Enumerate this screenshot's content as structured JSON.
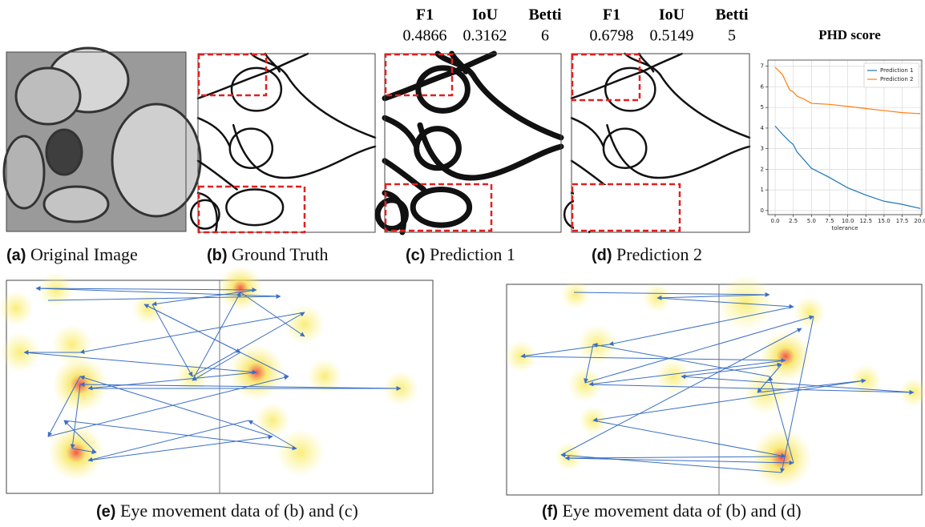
{
  "panels": [
    {
      "label": "(a)",
      "caption": "Original Image"
    },
    {
      "label": "(b)",
      "caption": "Ground Truth"
    },
    {
      "label": "(c)",
      "caption": "Prediction 1",
      "metrics": {
        "headers": [
          "F1",
          "IoU",
          "Betti"
        ],
        "values": [
          0.4866,
          0.3162,
          6
        ]
      }
    },
    {
      "label": "(d)",
      "caption": "Prediction 2",
      "metrics": {
        "headers": [
          "F1",
          "IoU",
          "Betti"
        ],
        "values": [
          0.6798,
          0.5149,
          5
        ]
      }
    },
    {
      "label": "(e)",
      "caption": "Eye movement data of (b) and (c)"
    },
    {
      "label": "(f)",
      "caption": "Eye movement data of (b) and (d)"
    }
  ],
  "chart_data": {
    "type": "line",
    "title": "PHD score",
    "x_label": "tolerance",
    "x": [
      0,
      1,
      2,
      2.5,
      3,
      4,
      5,
      7.5,
      10,
      12.5,
      15,
      17.5,
      20
    ],
    "series": [
      {
        "name": "Prediction 1",
        "color": "#1f77b4",
        "values": [
          4.1,
          3.7,
          3.35,
          3.2,
          2.85,
          2.45,
          2.05,
          1.6,
          1.1,
          0.75,
          0.45,
          0.3,
          0.1
        ]
      },
      {
        "name": "Prediction 2",
        "color": "#ff7f0e",
        "values": [
          6.95,
          6.6,
          5.85,
          5.75,
          5.55,
          5.4,
          5.2,
          5.15,
          5.05,
          4.95,
          4.85,
          4.75,
          4.7
        ]
      }
    ],
    "xlim": [
      -1,
      20.2
    ],
    "ylim": [
      -0.2,
      7.3
    ],
    "xticks": [
      {
        "value": 0,
        "label": "0.0"
      },
      {
        "value": 2.5,
        "label": "2.5"
      },
      {
        "value": 5,
        "label": "5.0"
      },
      {
        "value": 7.5,
        "label": "7.5"
      },
      {
        "value": 10,
        "label": "10.0"
      },
      {
        "value": 12.5,
        "label": "12.5"
      },
      {
        "value": 15,
        "label": "15.0"
      },
      {
        "value": 17.5,
        "label": "17.5"
      },
      {
        "value": 20,
        "label": "20.0"
      }
    ],
    "yticks": [
      0,
      1,
      2,
      3,
      4,
      5,
      6,
      7
    ],
    "grid": true,
    "legend": "upper right"
  }
}
